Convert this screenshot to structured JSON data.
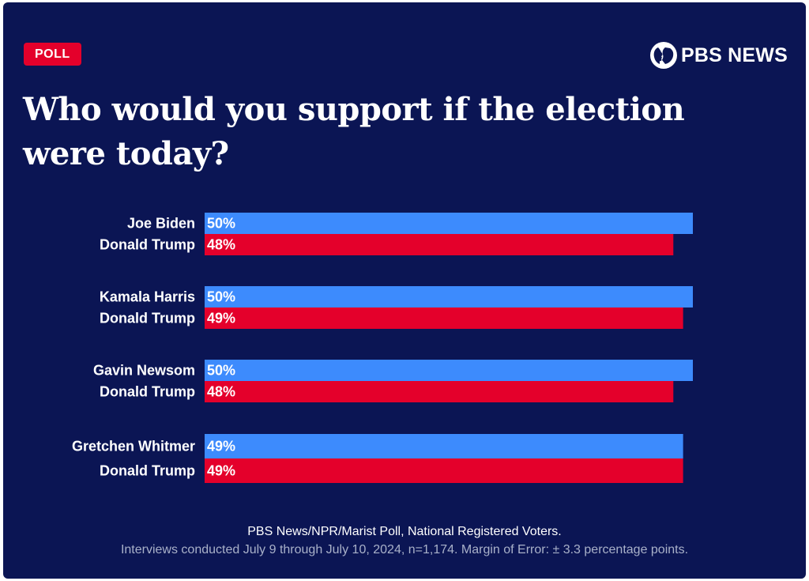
{
  "badge": "POLL",
  "brand": {
    "name": "PBS NEWS",
    "logo_icon": "pbs-head-icon"
  },
  "colors": {
    "background": "#0b1554",
    "democrat": "#3d8bfd",
    "republican": "#e4002b",
    "badge": "#e4002b"
  },
  "chart_data": {
    "type": "bar",
    "orientation": "horizontal",
    "title": "Who would you support if the election were today?",
    "value_suffix": "%",
    "xlim": [
      0,
      50
    ],
    "groups": [
      {
        "rows": [
          {
            "name": "Joe Biden",
            "value": 50,
            "party": "democrat"
          },
          {
            "name": "Donald Trump",
            "value": 48,
            "party": "republican"
          }
        ]
      },
      {
        "rows": [
          {
            "name": "Kamala Harris",
            "value": 50,
            "party": "democrat"
          },
          {
            "name": "Donald Trump",
            "value": 49,
            "party": "republican"
          }
        ]
      },
      {
        "rows": [
          {
            "name": "Gavin Newsom",
            "value": 50,
            "party": "democrat"
          },
          {
            "name": "Donald Trump",
            "value": 48,
            "party": "republican"
          }
        ]
      },
      {
        "rows": [
          {
            "name": "Gretchen Whitmer",
            "value": 49,
            "party": "democrat"
          },
          {
            "name": "Donald Trump",
            "value": 49,
            "party": "republican"
          }
        ]
      }
    ]
  },
  "footer": {
    "source": "PBS News/NPR/Marist Poll, National Registered Voters.",
    "note": "Interviews conducted July 9 through July 10, 2024, n=1,174. Margin of Error: ± 3.3 percentage points."
  }
}
